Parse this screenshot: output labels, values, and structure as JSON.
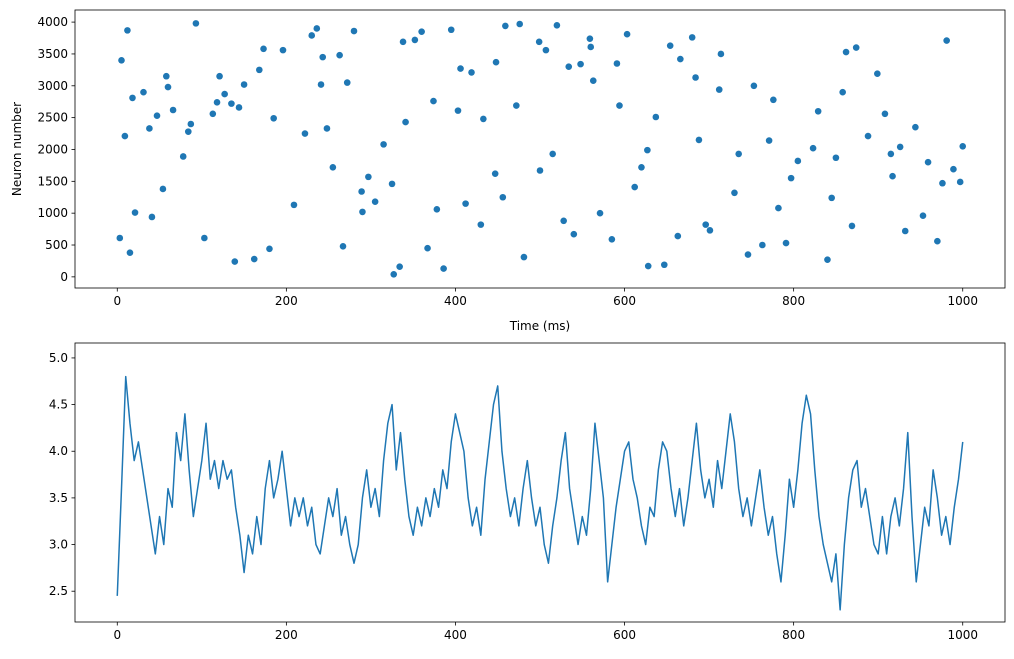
{
  "chart_data": [
    {
      "type": "scatter",
      "xlabel": "Time (ms)",
      "ylabel": "Neuron number",
      "color": "#1f77b4",
      "xlim": [
        -50,
        1050
      ],
      "ylim": [
        -175,
        4190
      ],
      "xticks": [
        0,
        200,
        400,
        600,
        800,
        1000
      ],
      "yticks": [
        0,
        500,
        1000,
        1500,
        2000,
        2500,
        3000,
        3500,
        4000
      ],
      "x": [
        12,
        845,
        403,
        267,
        591,
        78,
        932,
        150,
        688,
        334,
        507,
        21,
        776,
        459,
        103,
        620,
        248,
        899,
        367,
        712,
        54,
        981,
        430,
        185,
        563,
        297,
        840,
        9,
        654,
        378,
        127,
        746,
        515,
        263,
        908,
        41,
        603,
        325,
        472,
        791,
        168,
        959,
        236,
        540,
        87,
        684,
        412,
        823,
        3,
        559,
        315,
        730,
        196,
        869,
        448,
        66,
        627,
        280,
        997,
        139,
        500,
        753,
        222,
        874,
        386,
        31,
        666,
        585,
        118,
        805,
        352,
        944,
        209,
        476,
        701,
        58,
        917,
        433,
        162,
        534,
        290,
        862,
        18,
        647,
        395,
        771,
        243,
        989,
        113,
        528,
        341,
        680,
        15,
        456,
        829,
        272,
        612,
        93,
        953,
        374,
        735,
        180,
        499,
        888,
        60,
        571,
        419,
        797,
        230,
        663,
        144,
        926,
        305,
        548,
        38,
        714,
        481,
        858,
        255,
        970,
        121,
        637,
        360,
        782,
        5,
        594,
        447,
        173,
        915,
        327,
        696,
        84,
        520,
        976,
        241,
        763,
        406,
        135,
        850,
        560,
        289,
        1000,
        47,
        628,
        338
      ],
      "y": [
        3870,
        1240,
        2610,
        480,
        3350,
        1890,
        720,
        3020,
        2150,
        160,
        3560,
        1010,
        2780,
        3940,
        610,
        1720,
        2330,
        3190,
        450,
        2940,
        1380,
        3710,
        820,
        2490,
        3080,
        1570,
        270,
        2210,
        3630,
        1060,
        2870,
        350,
        1930,
        3480,
        2560,
        940,
        3810,
        1460,
        2690,
        530,
        3250,
        1800,
        3900,
        670,
        2400,
        3130,
        1150,
        2020,
        610,
        3740,
        2080,
        1320,
        3560,
        800,
        3370,
        2620,
        1990,
        3860,
        1490,
        240,
        1670,
        3000,
        2250,
        3600,
        130,
        2900,
        3420,
        590,
        2740,
        1820,
        3720,
        2350,
        1130,
        3970,
        730,
        3150,
        1580,
        2480,
        280,
        3300,
        1020,
        3530,
        2810,
        190,
        3880,
        2140,
        3450,
        1690,
        2560,
        880,
        2430,
        3760,
        380,
        1250,
        2600,
        3050,
        1410,
        3980,
        960,
        2760,
        1930,
        440,
        3690,
        2210,
        2980,
        1000,
        3210,
        1550,
        3790,
        640,
        2660,
        2040,
        1180,
        3340,
        2330,
        3500,
        310,
        2900,
        1720,
        560,
        3150,
        2510,
        3850,
        1080,
        3400,
        2690,
        1620,
        3580,
        1930,
        40,
        820,
        2280,
        3950,
        1470,
        3020,
        500,
        3270,
        2720,
        1870,
        3610,
        1340,
        2050,
        2530,
        170,
        3690
      ]
    },
    {
      "type": "line",
      "xlim": [
        -50,
        1050
      ],
      "ylim": [
        2.17,
        5.16
      ],
      "xticks": [
        0,
        200,
        400,
        600,
        800,
        1000
      ],
      "yticks": [
        2.5,
        {
          "value": 3,
          "label": "3.0"
        },
        3.5,
        {
          "value": 4,
          "label": "4.0"
        },
        4.5,
        {
          "value": 5,
          "label": "5.0"
        }
      ],
      "x": [
        0,
        5,
        10,
        15,
        20,
        25,
        30,
        35,
        40,
        45,
        50,
        55,
        60,
        65,
        70,
        75,
        80,
        85,
        90,
        95,
        100,
        105,
        110,
        115,
        120,
        125,
        130,
        135,
        140,
        145,
        150,
        155,
        160,
        165,
        170,
        175,
        180,
        185,
        190,
        195,
        200,
        205,
        210,
        215,
        220,
        225,
        230,
        235,
        240,
        245,
        250,
        255,
        260,
        265,
        270,
        275,
        280,
        285,
        290,
        295,
        300,
        305,
        310,
        315,
        320,
        325,
        330,
        335,
        340,
        345,
        350,
        355,
        360,
        365,
        370,
        375,
        380,
        385,
        390,
        395,
        400,
        405,
        410,
        415,
        420,
        425,
        430,
        435,
        440,
        445,
        450,
        455,
        460,
        465,
        470,
        475,
        480,
        485,
        490,
        495,
        500,
        505,
        510,
        515,
        520,
        525,
        530,
        535,
        540,
        545,
        550,
        555,
        560,
        565,
        570,
        575,
        580,
        585,
        590,
        595,
        600,
        605,
        610,
        615,
        620,
        625,
        630,
        635,
        640,
        645,
        650,
        655,
        660,
        665,
        670,
        675,
        680,
        685,
        690,
        695,
        700,
        705,
        710,
        715,
        720,
        725,
        730,
        735,
        740,
        745,
        750,
        755,
        760,
        765,
        770,
        775,
        780,
        785,
        790,
        795,
        800,
        805,
        810,
        815,
        820,
        825,
        830,
        835,
        840,
        845,
        850,
        855,
        860,
        865,
        870,
        875,
        880,
        885,
        890,
        895,
        900,
        905,
        910,
        915,
        920,
        925,
        930,
        935,
        940,
        945,
        950,
        955,
        960,
        965,
        970,
        975,
        980,
        985,
        990,
        995,
        1000
      ],
      "series": [
        {
          "color": "#1f77b4",
          "values": [
            2.45,
            3.6,
            4.8,
            4.3,
            3.9,
            4.1,
            3.8,
            3.5,
            3.2,
            2.9,
            3.3,
            3.0,
            3.6,
            3.4,
            4.2,
            3.9,
            4.4,
            3.8,
            3.3,
            3.6,
            3.9,
            4.3,
            3.7,
            3.9,
            3.6,
            3.9,
            3.7,
            3.8,
            3.4,
            3.1,
            2.7,
            3.1,
            2.9,
            3.3,
            3.0,
            3.6,
            3.9,
            3.5,
            3.7,
            4.0,
            3.6,
            3.2,
            3.5,
            3.3,
            3.5,
            3.2,
            3.4,
            3.0,
            2.9,
            3.2,
            3.5,
            3.3,
            3.6,
            3.1,
            3.3,
            3.0,
            2.8,
            3.0,
            3.5,
            3.8,
            3.4,
            3.6,
            3.3,
            3.9,
            4.3,
            4.5,
            3.8,
            4.2,
            3.7,
            3.3,
            3.1,
            3.4,
            3.2,
            3.5,
            3.3,
            3.6,
            3.4,
            3.8,
            3.6,
            4.1,
            4.4,
            4.2,
            4.0,
            3.5,
            3.2,
            3.4,
            3.1,
            3.7,
            4.1,
            4.5,
            4.7,
            4.0,
            3.6,
            3.3,
            3.5,
            3.2,
            3.6,
            3.9,
            3.5,
            3.2,
            3.4,
            3.0,
            2.8,
            3.2,
            3.5,
            3.9,
            4.2,
            3.6,
            3.3,
            3.0,
            3.3,
            3.1,
            3.6,
            4.3,
            3.9,
            3.5,
            2.6,
            3.0,
            3.4,
            3.7,
            4.0,
            4.1,
            3.7,
            3.5,
            3.2,
            3.0,
            3.4,
            3.3,
            3.8,
            4.1,
            4.0,
            3.6,
            3.3,
            3.6,
            3.2,
            3.5,
            3.9,
            4.3,
            3.8,
            3.5,
            3.7,
            3.4,
            3.9,
            3.6,
            4.0,
            4.4,
            4.1,
            3.6,
            3.3,
            3.5,
            3.2,
            3.5,
            3.8,
            3.4,
            3.1,
            3.3,
            2.9,
            2.6,
            3.1,
            3.7,
            3.4,
            3.8,
            4.3,
            4.6,
            4.4,
            3.8,
            3.3,
            3.0,
            2.8,
            2.6,
            2.9,
            2.3,
            3.0,
            3.5,
            3.8,
            3.9,
            3.4,
            3.6,
            3.3,
            3.0,
            2.9,
            3.3,
            2.9,
            3.3,
            3.5,
            3.2,
            3.6,
            4.2,
            3.3,
            2.6,
            3.0,
            3.4,
            3.2,
            3.8,
            3.5,
            3.1,
            3.3,
            3.0,
            3.4,
            3.7,
            4.1
          ]
        }
      ]
    }
  ]
}
